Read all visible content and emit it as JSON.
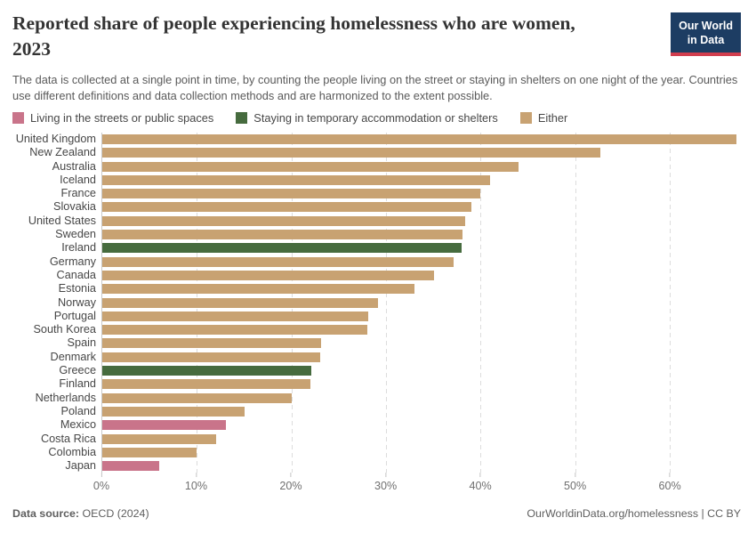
{
  "header": {
    "title_lines": [
      "Reported share of people experiencing homelessness who are women,",
      "2023"
    ],
    "subtitle": "The data is collected at a single point in time, by counting the people living on the street or staying in shelters on one night of the year. Countries use different definitions and data collection methods and are harmonized to the extent possible.",
    "logo": {
      "line1": "Our World",
      "line2": "in Data",
      "bg_color": "#1d3d63",
      "accent_color": "#d13d4e"
    }
  },
  "legend": [
    {
      "key": "street",
      "label": "Living in the streets or public spaces",
      "color": "#c9748a"
    },
    {
      "key": "shelter",
      "label": "Staying in temporary accommodation or shelters",
      "color": "#466b3e"
    },
    {
      "key": "either",
      "label": "Either",
      "color": "#c8a272"
    }
  ],
  "chart_data": {
    "type": "bar",
    "orientation": "horizontal",
    "title": "Reported share of people experiencing homelessness who are women, 2023",
    "unit": "%",
    "xlim": [
      0,
      67.5
    ],
    "x_ticks": [
      0,
      10,
      20,
      30,
      40,
      50,
      60
    ],
    "x_tick_labels": [
      "0%",
      "10%",
      "20%",
      "30%",
      "40%",
      "50%",
      "60%"
    ],
    "grid": true,
    "rows": [
      {
        "country": "United Kingdom",
        "value": 67.0,
        "group": "either"
      },
      {
        "country": "New Zealand",
        "value": 52.6,
        "group": "either"
      },
      {
        "country": "Australia",
        "value": 44.0,
        "group": "either"
      },
      {
        "country": "Iceland",
        "value": 41.0,
        "group": "either"
      },
      {
        "country": "France",
        "value": 40.0,
        "group": "either"
      },
      {
        "country": "Slovakia",
        "value": 39.0,
        "group": "either"
      },
      {
        "country": "United States",
        "value": 38.4,
        "group": "either"
      },
      {
        "country": "Sweden",
        "value": 38.1,
        "group": "either"
      },
      {
        "country": "Ireland",
        "value": 38.0,
        "group": "shelter"
      },
      {
        "country": "Germany",
        "value": 37.1,
        "group": "either"
      },
      {
        "country": "Canada",
        "value": 35.1,
        "group": "either"
      },
      {
        "country": "Estonia",
        "value": 33.0,
        "group": "either"
      },
      {
        "country": "Norway",
        "value": 29.1,
        "group": "either"
      },
      {
        "country": "Portugal",
        "value": 28.1,
        "group": "either"
      },
      {
        "country": "South Korea",
        "value": 28.0,
        "group": "either"
      },
      {
        "country": "Spain",
        "value": 23.1,
        "group": "either"
      },
      {
        "country": "Denmark",
        "value": 23.0,
        "group": "either"
      },
      {
        "country": "Greece",
        "value": 22.1,
        "group": "shelter"
      },
      {
        "country": "Finland",
        "value": 22.0,
        "group": "either"
      },
      {
        "country": "Netherlands",
        "value": 20.0,
        "group": "either"
      },
      {
        "country": "Poland",
        "value": 15.0,
        "group": "either"
      },
      {
        "country": "Mexico",
        "value": 13.1,
        "group": "street"
      },
      {
        "country": "Costa Rica",
        "value": 12.0,
        "group": "either"
      },
      {
        "country": "Colombia",
        "value": 10.0,
        "group": "either"
      },
      {
        "country": "Japan",
        "value": 6.0,
        "group": "street"
      }
    ]
  },
  "footer": {
    "source_label": "Data source:",
    "source_value": "OECD (2024)",
    "credit": "OurWorldinData.org/homelessness | CC BY"
  }
}
